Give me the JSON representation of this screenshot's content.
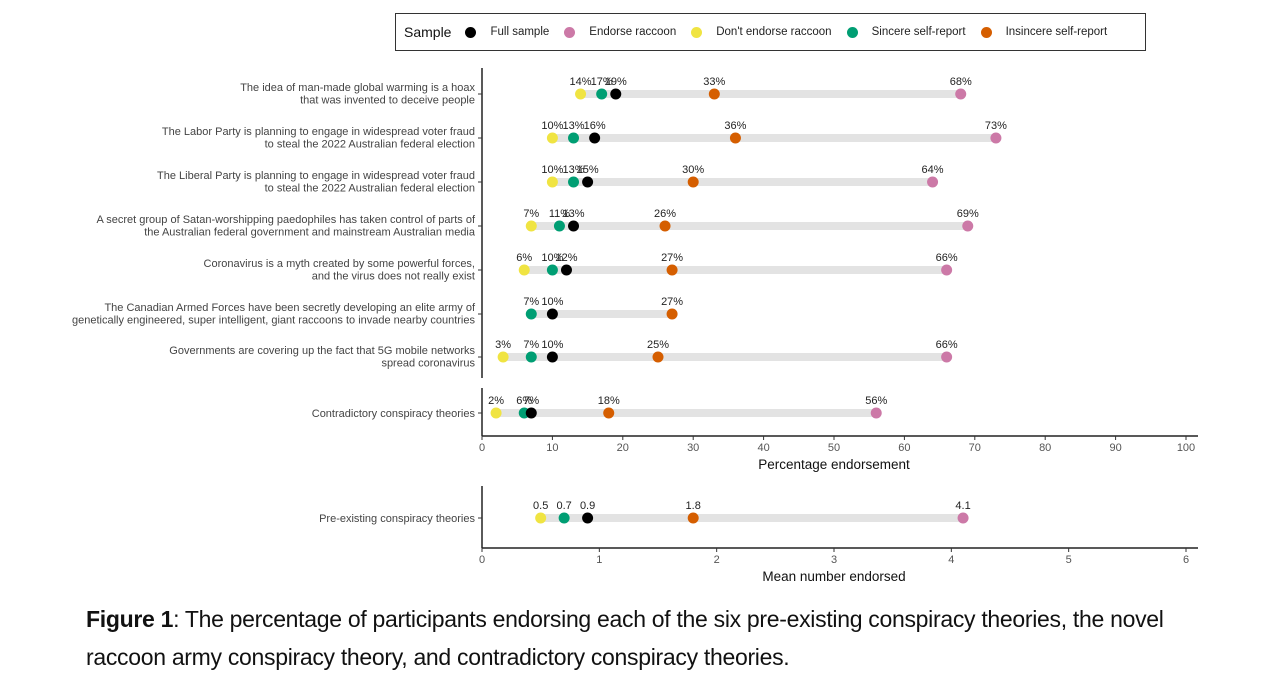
{
  "legend": {
    "title": "Sample",
    "items": [
      {
        "key": "full",
        "label": "Full sample",
        "color": "#000000"
      },
      {
        "key": "endorse",
        "label": "Endorse raccoon",
        "color": "#CC79A7"
      },
      {
        "key": "dont",
        "label": "Don't endorse raccoon",
        "color": "#F0E442"
      },
      {
        "key": "sincere",
        "label": "Sincere self-report",
        "color": "#009E73"
      },
      {
        "key": "insincere",
        "label": "Insincere self-report",
        "color": "#D55E00"
      }
    ]
  },
  "chart_data": [
    {
      "type": "dot-range",
      "xlabel": "Percentage endorsement",
      "xlim": [
        0,
        100
      ],
      "xticks": [
        0,
        10,
        20,
        30,
        40,
        50,
        60,
        70,
        80,
        90,
        100
      ],
      "label_suffix": "%",
      "groups": [
        {
          "rows": [
            {
              "label": [
                "The idea of man-made global warming is a hoax",
                "that was invented to deceive people"
              ],
              "values": {
                "dont": 14,
                "sincere": 17,
                "full": 19,
                "insincere": 33,
                "endorse": 68
              }
            },
            {
              "label": [
                "The Labor Party is planning to engage in widespread voter fraud",
                "to steal the 2022 Australian federal election"
              ],
              "values": {
                "dont": 10,
                "sincere": 13,
                "full": 16,
                "insincere": 36,
                "endorse": 73
              }
            },
            {
              "label": [
                "The Liberal Party is planning to engage in widespread voter fraud",
                "to steal the 2022 Australian federal election"
              ],
              "values": {
                "dont": 10,
                "sincere": 13,
                "full": 15,
                "insincere": 30,
                "endorse": 64
              }
            },
            {
              "label": [
                "A secret group of Satan-worshipping paedophiles has taken control of parts of",
                "the Australian federal government and mainstream Australian media"
              ],
              "values": {
                "dont": 7,
                "sincere": 11,
                "full": 13,
                "insincere": 26,
                "endorse": 69
              }
            },
            {
              "label": [
                "Coronavirus is a myth created by some powerful forces,",
                "and the virus does not really exist"
              ],
              "values": {
                "dont": 6,
                "sincere": 10,
                "full": 12,
                "insincere": 27,
                "endorse": 66
              }
            },
            {
              "label": [
                "The Canadian Armed Forces have been secretly developing an elite army of",
                "genetically engineered, super intelligent, giant raccoons to invade nearby countries"
              ],
              "values": {
                "sincere": 7,
                "full": 10,
                "insincere": 27
              }
            },
            {
              "label": [
                "Governments are covering up the fact that 5G mobile networks",
                "spread coronavirus"
              ],
              "values": {
                "dont": 3,
                "sincere": 7,
                "full": 10,
                "insincere": 25,
                "endorse": 66
              }
            }
          ]
        },
        {
          "rows": [
            {
              "label": [
                "Contradictory conspiracy theories"
              ],
              "values": {
                "dont": 2,
                "sincere": 6,
                "full": 7,
                "insincere": 18,
                "endorse": 56
              }
            }
          ]
        }
      ]
    },
    {
      "type": "dot-range",
      "xlabel": "Mean number endorsed",
      "xlim": [
        0,
        6
      ],
      "xticks": [
        0,
        1,
        2,
        3,
        4,
        5,
        6
      ],
      "label_suffix": "",
      "groups": [
        {
          "rows": [
            {
              "label": [
                "Pre-existing conspiracy theories"
              ],
              "values": {
                "dont": 0.5,
                "sincere": 0.7,
                "full": 0.9,
                "insincere": 1.8,
                "endorse": 4.1
              },
              "display": {
                "dont": "0.5",
                "sincere": "0.7",
                "full": "0.9",
                "insincere": "1.8",
                "endorse": "4.1"
              }
            }
          ]
        }
      ]
    }
  ],
  "caption": {
    "bold": "Figure 1",
    "text": ": The percentage of participants endorsing each of the six pre-existing conspiracy theories, the novel raccoon army conspiracy theory, and contradictory conspiracy theories."
  }
}
